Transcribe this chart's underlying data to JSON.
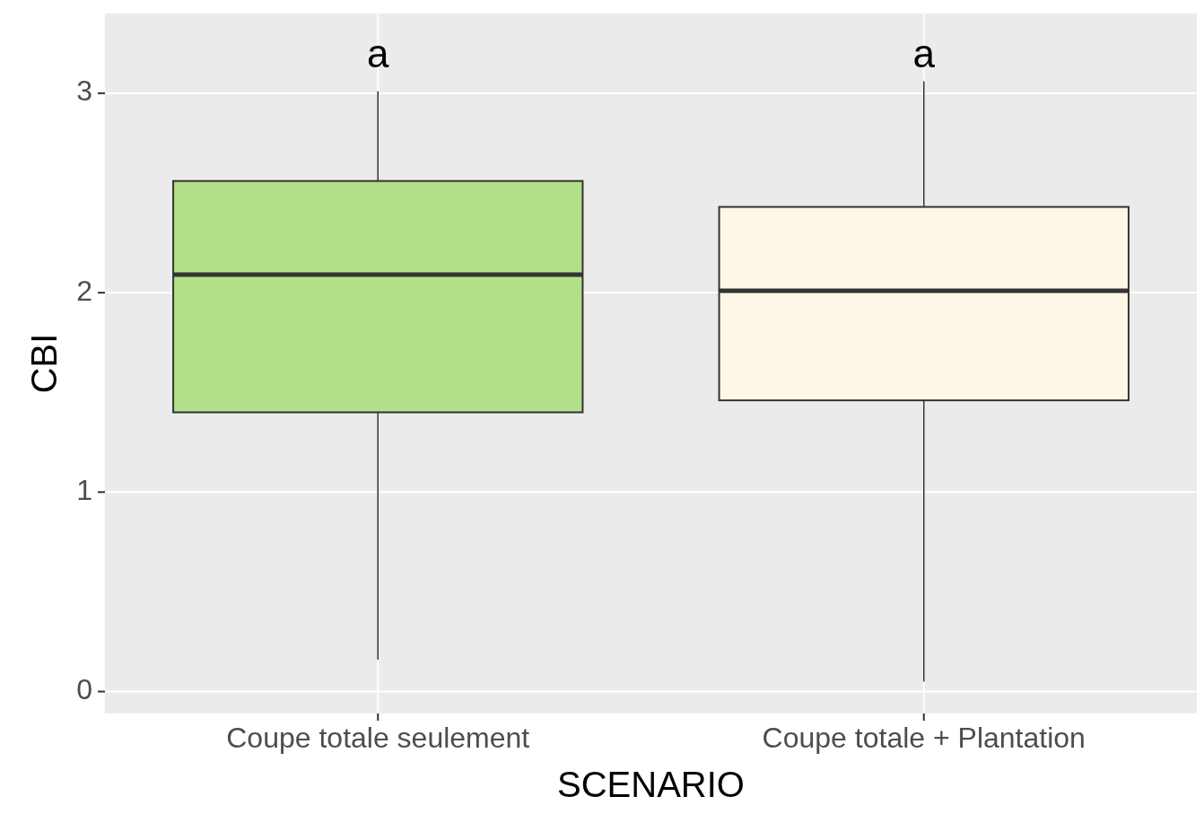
{
  "chart_data": {
    "type": "box",
    "xlabel": "SCENARIO",
    "ylabel": "CBI",
    "categories": [
      "Coupe totale seulement",
      "Coupe totale + Plantation"
    ],
    "boxes": [
      {
        "low": 0.16,
        "q1": 1.4,
        "median": 2.09,
        "q3": 2.56,
        "high": 3.01
      },
      {
        "low": 0.05,
        "q1": 1.46,
        "median": 2.01,
        "q3": 2.43,
        "high": 3.06
      }
    ],
    "colors": [
      "#b2df87",
      "#fdf8e6"
    ],
    "ylim": [
      -0.11,
      3.4
    ],
    "yticks": [
      0,
      1,
      2,
      3
    ],
    "grid": true,
    "annotations": [
      "a",
      "a"
    ]
  }
}
